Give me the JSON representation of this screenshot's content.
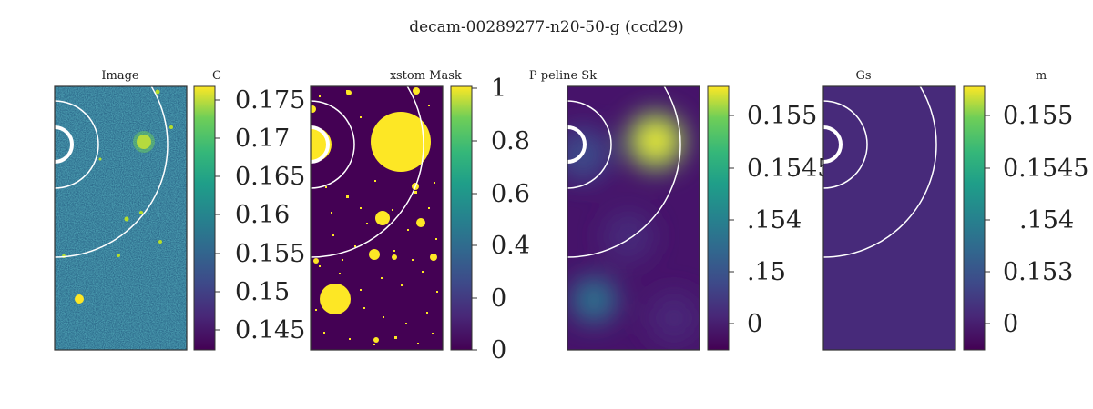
{
  "figure": {
    "title": "decam-00289277-n20-50-g (ccd29)"
  },
  "chart_data": [
    {
      "type": "heatmap",
      "title": "Image",
      "colormap": "viridis",
      "colorbar_title": "C",
      "colorbar_ticks": [
        "0.175",
        "0.17",
        "0.165",
        "0.16",
        "0.155",
        "0.15",
        "0.145"
      ],
      "note": "noisy sky with bright sources"
    },
    {
      "type": "heatmap",
      "title": "stom Mask",
      "title_prefix": "x",
      "colormap": "viridis",
      "colorbar_title": "",
      "colorbar_ticks": [
        "1",
        "0.8",
        "0.6",
        "0.4",
        "0",
        "0"
      ]
    },
    {
      "type": "heatmap",
      "title": "P peline Sk",
      "colormap": "viridis",
      "colorbar_title": "",
      "colorbar_ticks": [
        "0.155",
        "0.1545",
        ".154",
        ".15",
        "0"
      ]
    },
    {
      "type": "heatmap",
      "title": "Gs",
      "colormap": "viridis",
      "colorbar_title": "m",
      "colorbar_ticks": [
        "0.155",
        "0.1545",
        ".154",
        "0.153",
        "0"
      ]
    }
  ]
}
